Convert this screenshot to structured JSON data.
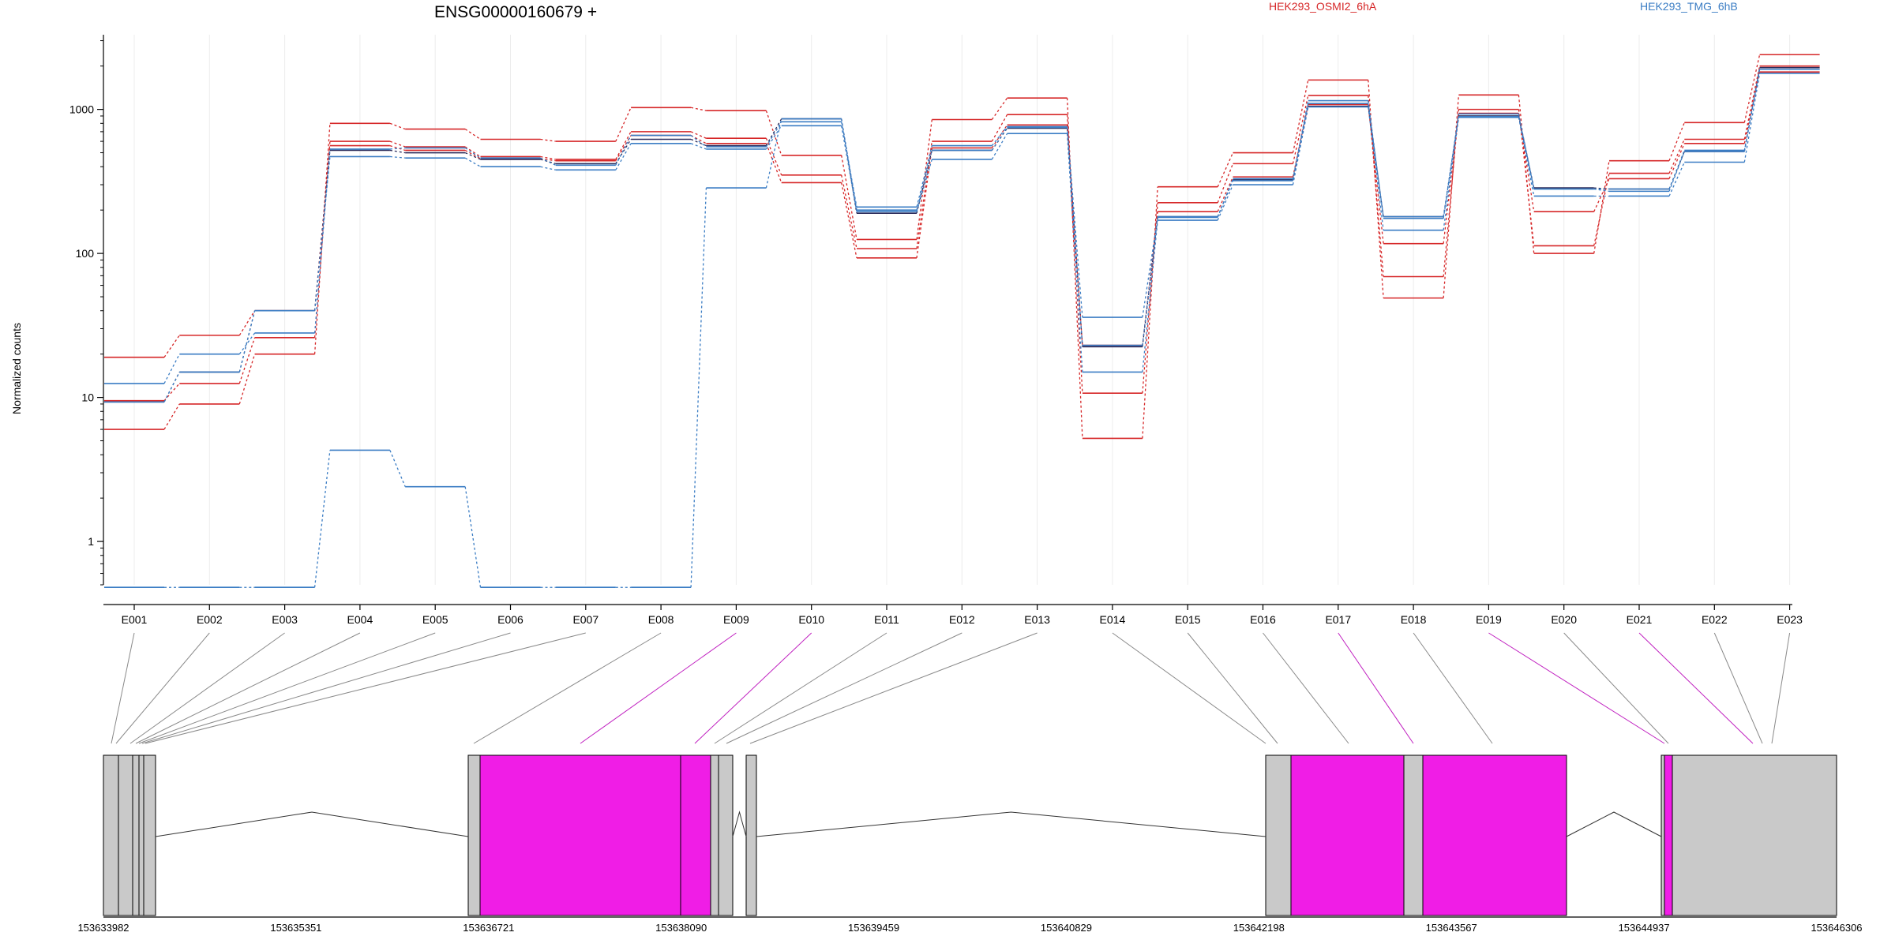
{
  "chart_data": {
    "type": "line",
    "title": "ENSG00000160679 +",
    "ylabel": "Normalized counts",
    "xlabel": "",
    "y_scale": "log",
    "ylim": [
      0.5,
      3300
    ],
    "y_ticks": [
      1,
      10,
      100,
      1000
    ],
    "y_tick_labels": [
      "1",
      "10",
      "100",
      "1000"
    ],
    "categories": [
      "E001",
      "E002",
      "E003",
      "E004",
      "E005",
      "E006",
      "E007",
      "E008",
      "E009",
      "E010",
      "E011",
      "E012",
      "E013",
      "E014",
      "E015",
      "E016",
      "E017",
      "E018",
      "E019",
      "E020",
      "E021",
      "E022",
      "E023"
    ],
    "legend": [
      {
        "label": "HEK293_OSMI2_6hA",
        "color": "#d62728"
      },
      {
        "label": "HEK293_TMG_6hB",
        "color": "#3b7dc4"
      }
    ],
    "colors": {
      "red": "#d62728",
      "blue": "#3b7dc4",
      "dark": "#2b2b5a",
      "exon_gray": "#c9c9c9",
      "exon_magenta": "#f01de6"
    },
    "series": [
      {
        "color": "#d62728",
        "values": [
          6,
          9,
          20,
          800,
          730,
          620,
          600,
          1030,
          980,
          480,
          125,
          850,
          1200,
          5.2,
          290,
          500,
          1600,
          49,
          1260,
          100,
          440,
          810,
          2400
        ]
      },
      {
        "color": "#d62728",
        "values": [
          9.5,
          12.5,
          26,
          600,
          550,
          470,
          450,
          700,
          630,
          350,
          108,
          600,
          920,
          10.7,
          225,
          420,
          1250,
          69,
          1000,
          113,
          360,
          620,
          2000
        ]
      },
      {
        "color": "#d62728",
        "values": [
          19,
          27,
          40,
          560,
          520,
          455,
          440,
          660,
          580,
          310,
          93,
          540,
          780,
          23,
          195,
          340,
          1080,
          117,
          940,
          195,
          330,
          580,
          1820
        ]
      },
      {
        "color": "#2b2b5a",
        "values": [
          9.3,
          15,
          40,
          520,
          500,
          450,
          420,
          620,
          560,
          860,
          190,
          520,
          740,
          22.5,
          180,
          325,
          1050,
          180,
          900,
          285,
          280,
          510,
          1950
        ]
      },
      {
        "color": "#3b7dc4",
        "values": [
          12.5,
          20,
          28,
          530,
          540,
          460,
          410,
          660,
          550,
          820,
          210,
          560,
          760,
          36,
          178,
          330,
          1150,
          175,
          930,
          280,
          280,
          520,
          1900
        ]
      },
      {
        "color": "#3b7dc4",
        "values": [
          9.3,
          15,
          40,
          470,
          460,
          400,
          380,
          580,
          530,
          770,
          195,
          450,
          680,
          15,
          170,
          300,
          1040,
          145,
          880,
          250,
          250,
          430,
          1780
        ]
      },
      {
        "color": "#3b7dc4",
        "values": [
          0.48,
          0.48,
          0.48,
          4.3,
          2.4,
          0.48,
          0.48,
          0.48,
          285,
          860,
          200,
          520,
          750,
          23,
          180,
          320,
          1100,
          180,
          890,
          280,
          270,
          510,
          1900
        ]
      }
    ],
    "coordinate_ticks": [
      "153633982",
      "153635351",
      "153636721",
      "153638090",
      "153639459",
      "153640829",
      "153642198",
      "153643567",
      "153644937",
      "153646306"
    ],
    "grid": true
  }
}
